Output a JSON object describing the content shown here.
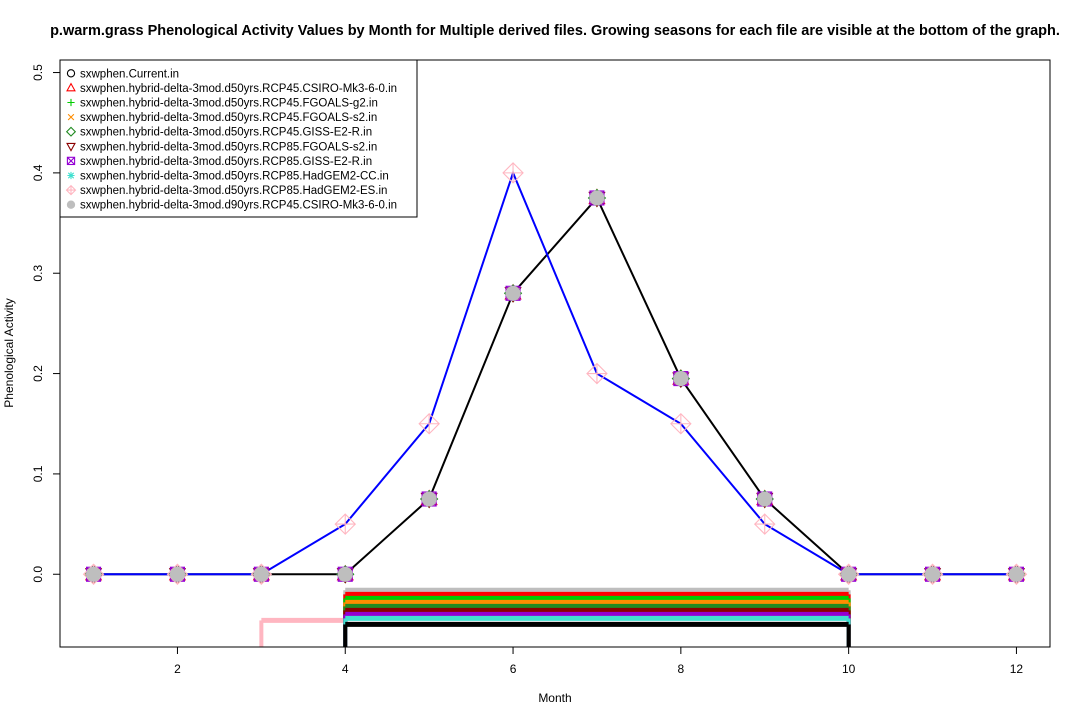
{
  "chart_data": {
    "type": "line",
    "title": "p.warm.grass Phenological Activity Values by Month for Multiple derived files. Growing seasons for each file are visible at the bottom of the graph.",
    "xlabel": "Month",
    "ylabel": "Phenological Activity",
    "xlim": [
      0.6,
      12.4
    ],
    "ylim": [
      -0.0725,
      0.5125
    ],
    "xticks": [
      2,
      4,
      6,
      8,
      10,
      12
    ],
    "yticks": [
      0.0,
      0.1,
      0.2,
      0.3,
      0.4,
      0.5
    ],
    "ytick_labels": [
      "0.0",
      "0.1",
      "0.2",
      "0.3",
      "0.4",
      "0.5"
    ],
    "grid": false,
    "legend_position": "top-left",
    "x": [
      1,
      2,
      3,
      4,
      5,
      6,
      7,
      8,
      9,
      10,
      11,
      12
    ],
    "series": [
      {
        "name": "sxwphen.Current.in",
        "color": "#000000",
        "marker": "circle",
        "values": [
          0,
          0,
          0,
          0,
          0.075,
          0.28,
          0.375,
          0.195,
          0.075,
          0,
          0,
          0
        ],
        "line": true
      },
      {
        "name": "sxwphen.hybrid-delta-3mod.d50yrs.RCP45.CSIRO-Mk3-6-0.in",
        "color": "#ff0000",
        "marker": "triangle-up",
        "values": [
          0,
          0,
          0,
          0,
          0.075,
          0.28,
          0.375,
          0.195,
          0.075,
          0,
          0,
          0
        ],
        "line": false
      },
      {
        "name": "sxwphen.hybrid-delta-3mod.d50yrs.RCP45.FGOALS-g2.in",
        "color": "#00cc00",
        "marker": "plus",
        "values": [
          0,
          0,
          0,
          0,
          0.075,
          0.28,
          0.375,
          0.195,
          0.075,
          0,
          0,
          0
        ],
        "line": false
      },
      {
        "name": "sxwphen.hybrid-delta-3mod.d50yrs.RCP45.FGOALS-s2.in",
        "color": "#ff8c00",
        "marker": "x",
        "values": [
          0,
          0,
          0,
          0,
          0.075,
          0.28,
          0.375,
          0.195,
          0.075,
          0,
          0,
          0
        ],
        "line": false
      },
      {
        "name": "sxwphen.hybrid-delta-3mod.d50yrs.RCP45.GISS-E2-R.in",
        "color": "#228b22",
        "marker": "diamond",
        "values": [
          0,
          0,
          0,
          0,
          0.075,
          0.28,
          0.375,
          0.195,
          0.075,
          0,
          0,
          0
        ],
        "line": false
      },
      {
        "name": "sxwphen.hybrid-delta-3mod.d50yrs.RCP85.FGOALS-s2.in",
        "color": "#8b0000",
        "marker": "triangle-down",
        "values": [
          0,
          0,
          0,
          0,
          0.075,
          0.28,
          0.375,
          0.195,
          0.075,
          0,
          0,
          0
        ],
        "line": false
      },
      {
        "name": "sxwphen.hybrid-delta-3mod.d50yrs.RCP85.GISS-E2-R.in",
        "color": "#9400d3",
        "marker": "square-x",
        "values": [
          0,
          0,
          0,
          0,
          0.075,
          0.28,
          0.375,
          0.195,
          0.075,
          0,
          0,
          0
        ],
        "line": false
      },
      {
        "name": "sxwphen.hybrid-delta-3mod.d50yrs.RCP85.HadGEM2-CC.in",
        "color": "#40e0d0",
        "marker": "asterisk",
        "values": [
          0,
          0,
          0,
          0,
          0.075,
          0.28,
          0.375,
          0.195,
          0.075,
          0,
          0,
          0
        ],
        "line": false
      },
      {
        "name": "sxwphen.hybrid-delta-3mod.d50yrs.RCP85.HadGEM2-ES.in",
        "color": "#ffb6c1",
        "marker": "diamond-plus",
        "values": [
          0,
          0,
          0,
          0.05,
          0.15,
          0.4,
          0.2,
          0.15,
          0.05,
          0,
          0,
          0
        ],
        "line": true,
        "line_color": "#0000ff"
      },
      {
        "name": "sxwphen.hybrid-delta-3mod.d90yrs.RCP45.CSIRO-Mk3-6-0.in",
        "color": "#bebebe",
        "marker": "filled-circle",
        "values": [
          0,
          0,
          0,
          0,
          0.075,
          0.28,
          0.375,
          0.195,
          0.075,
          0,
          0,
          0
        ],
        "line": false
      }
    ],
    "growing_seasons": [
      {
        "series": "sxwphen.hybrid-delta-3mod.d50yrs.RCP85.HadGEM2-ES.in",
        "start": 3,
        "end": 4,
        "y": -0.046,
        "color": "#ffb6c1"
      },
      {
        "series": "sxwphen.hybrid-delta-3mod.d90yrs.RCP45.CSIRO-Mk3-6-0.in",
        "start": 4,
        "end": 10,
        "y": -0.016,
        "color": "#bebebe"
      },
      {
        "series": "sxwphen.hybrid-delta-3mod.d50yrs.RCP45.CSIRO-Mk3-6-0.in",
        "start": 4,
        "end": 10,
        "y": -0.02,
        "color": "#ff0000"
      },
      {
        "series": "sxwphen.hybrid-delta-3mod.d50yrs.RCP45.FGOALS-g2.in",
        "start": 4,
        "end": 10,
        "y": -0.024,
        "color": "#00cc00"
      },
      {
        "series": "sxwphen.hybrid-delta-3mod.d50yrs.RCP45.FGOALS-s2.in",
        "start": 4,
        "end": 10,
        "y": -0.028,
        "color": "#ff8c00"
      },
      {
        "series": "sxwphen.hybrid-delta-3mod.d50yrs.RCP45.GISS-E2-R.in",
        "start": 4,
        "end": 10,
        "y": -0.032,
        "color": "#228b22"
      },
      {
        "series": "sxwphen.hybrid-delta-3mod.d50yrs.RCP85.FGOALS-s2.in",
        "start": 4,
        "end": 10,
        "y": -0.036,
        "color": "#8b0000"
      },
      {
        "series": "sxwphen.hybrid-delta-3mod.d50yrs.RCP85.GISS-E2-R.in",
        "start": 4,
        "end": 10,
        "y": -0.04,
        "color": "#9400d3"
      },
      {
        "series": "sxwphen.hybrid-delta-3mod.d50yrs.RCP85.HadGEM2-CC.in",
        "start": 4,
        "end": 10,
        "y": -0.044,
        "color": "#40e0d0"
      },
      {
        "series": "sxwphen.Current.in",
        "start": 4,
        "end": 10,
        "y": -0.05,
        "color": "#000000"
      }
    ]
  }
}
